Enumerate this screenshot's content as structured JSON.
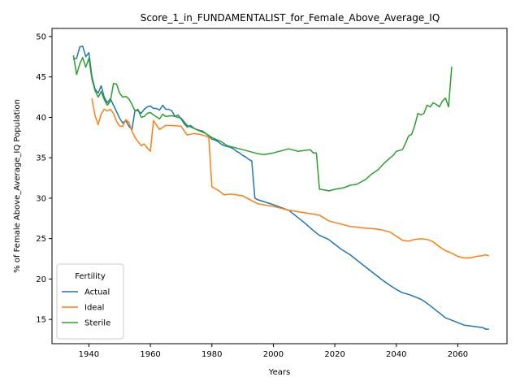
{
  "chart_data": {
    "type": "line",
    "title": "Score_1_in_FUNDAMENTALIST_for_Female_Above_Average_IQ",
    "xlabel": "Years",
    "ylabel": "% of Female Above_Average_IQ Population",
    "xlim": [
      1928,
      2076
    ],
    "ylim": [
      12,
      51
    ],
    "xticks": [
      1940,
      1960,
      1980,
      2000,
      2020,
      2040,
      2060
    ],
    "yticks": [
      15,
      20,
      25,
      30,
      35,
      40,
      45,
      50
    ],
    "grid": false,
    "legend": {
      "title": "Fertility",
      "placement": "lower-left"
    },
    "series": [
      {
        "name": "Actual",
        "color": "#1f77b4",
        "x": [
          1935,
          1936,
          1937,
          1938,
          1939,
          1940,
          1941,
          1942,
          1943,
          1944,
          1945,
          1946,
          1947,
          1948,
          1949,
          1950,
          1951,
          1952,
          1953,
          1954,
          1955,
          1956,
          1957,
          1958,
          1959,
          1960,
          1961,
          1962,
          1963,
          1964,
          1965,
          1966,
          1967,
          1968,
          1969,
          1970,
          1971,
          1972,
          1973,
          1974,
          1975,
          1976,
          1977,
          1978,
          1979,
          1980,
          1981,
          1982,
          1983,
          1984,
          1985,
          1986,
          1987,
          1988,
          1989,
          1990,
          1991,
          1992,
          1993,
          1994,
          1995,
          2000,
          2005,
          2010,
          2013,
          2015,
          2018,
          2020,
          2022,
          2025,
          2030,
          2033,
          2035,
          2038,
          2040,
          2042,
          2044,
          2046,
          2048,
          2050,
          2052,
          2054,
          2056,
          2058,
          2060,
          2062,
          2064,
          2066,
          2068,
          2069,
          2070
        ],
        "values": [
          47.2,
          47.3,
          48.7,
          48.8,
          47.5,
          48.0,
          45.0,
          43.5,
          43.0,
          43.9,
          42.5,
          41.8,
          42.3,
          41.5,
          40.7,
          39.9,
          39.3,
          39.6,
          38.9,
          38.5,
          40.9,
          40.8,
          40.5,
          41.0,
          41.3,
          41.4,
          41.1,
          41.1,
          40.9,
          41.5,
          41.0,
          41.0,
          40.8,
          40.1,
          40.3,
          39.8,
          39.2,
          38.8,
          39.0,
          38.7,
          38.5,
          38.4,
          38.3,
          38.0,
          37.7,
          37.3,
          37.2,
          37.0,
          36.7,
          36.5,
          36.4,
          36.3,
          36.1,
          35.8,
          35.6,
          35.3,
          35.1,
          34.8,
          34.6,
          30.0,
          29.8,
          29.2,
          28.5,
          27.0,
          26.0,
          25.4,
          24.9,
          24.3,
          23.7,
          23.0,
          21.5,
          20.6,
          20.0,
          19.2,
          18.7,
          18.3,
          18.1,
          17.8,
          17.5,
          17.0,
          16.4,
          15.8,
          15.2,
          14.9,
          14.6,
          14.3,
          14.2,
          14.1,
          14.0,
          13.8,
          13.8
        ]
      },
      {
        "name": "Ideal",
        "color": "#ff7f0e",
        "x": [
          1941,
          1942,
          1943,
          1944,
          1945,
          1946,
          1947,
          1948,
          1949,
          1950,
          1951,
          1952,
          1953,
          1954,
          1955,
          1956,
          1957,
          1958,
          1959,
          1960,
          1961,
          1963,
          1965,
          1967,
          1970,
          1972,
          1974,
          1976,
          1978,
          1979,
          1980,
          1982,
          1984,
          1986,
          1990,
          1995,
          2000,
          2005,
          2010,
          2015,
          2018,
          2020,
          2025,
          2030,
          2033,
          2035,
          2038,
          2040,
          2042,
          2044,
          2046,
          2048,
          2050,
          2052,
          2054,
          2056,
          2058,
          2060,
          2062,
          2064,
          2066,
          2068,
          2069,
          2070
        ],
        "values": [
          42.3,
          40.2,
          39.1,
          40.4,
          41.0,
          40.8,
          41.0,
          40.5,
          39.5,
          38.9,
          38.9,
          39.7,
          39.4,
          38.3,
          37.5,
          37.0,
          36.5,
          36.7,
          36.2,
          35.8,
          39.6,
          38.5,
          39.0,
          39.0,
          38.9,
          37.8,
          38.0,
          37.9,
          37.7,
          37.5,
          31.4,
          31.0,
          30.4,
          30.5,
          30.3,
          29.3,
          29.0,
          28.5,
          28.2,
          27.9,
          27.2,
          27.0,
          26.5,
          26.3,
          26.2,
          26.1,
          25.8,
          25.3,
          24.8,
          24.7,
          24.9,
          25.0,
          24.9,
          24.6,
          24.0,
          23.5,
          23.2,
          22.8,
          22.6,
          22.6,
          22.8,
          22.9,
          23.0,
          22.9
        ]
      },
      {
        "name": "Sterile",
        "color": "#2ca02c",
        "x": [
          1935,
          1936,
          1937,
          1938,
          1939,
          1940,
          1941,
          1942,
          1943,
          1944,
          1945,
          1946,
          1947,
          1948,
          1949,
          1950,
          1951,
          1952,
          1953,
          1954,
          1955,
          1956,
          1957,
          1958,
          1959,
          1960,
          1961,
          1963,
          1964,
          1965,
          1967,
          1969,
          1970,
          1972,
          1975,
          1978,
          1980,
          1983,
          1985,
          1990,
          1995,
          1997,
          2000,
          2005,
          2008,
          2010,
          2012,
          2013,
          2014,
          2015,
          2017,
          2018,
          2020,
          2023,
          2025,
          2027,
          2030,
          2032,
          2034,
          2036,
          2038,
          2039,
          2040,
          2042,
          2043,
          2044,
          2045,
          2046,
          2047,
          2048,
          2049,
          2050,
          2051,
          2052,
          2053,
          2054,
          2055,
          2056,
          2057,
          2058
        ],
        "values": [
          47.6,
          45.3,
          46.6,
          47.4,
          46.2,
          47.3,
          44.7,
          43.3,
          42.5,
          43.2,
          42.2,
          41.5,
          42.0,
          44.2,
          44.1,
          43.0,
          42.5,
          42.6,
          42.3,
          41.6,
          40.8,
          41.0,
          40.0,
          40.1,
          40.5,
          40.6,
          40.3,
          39.8,
          40.4,
          40.1,
          40.2,
          40.0,
          39.9,
          39.0,
          38.5,
          38.0,
          37.5,
          37.0,
          36.5,
          36.0,
          35.5,
          35.4,
          35.6,
          36.1,
          35.8,
          35.9,
          36.0,
          35.6,
          35.6,
          31.1,
          31.0,
          30.9,
          31.1,
          31.3,
          31.6,
          31.7,
          32.3,
          33.0,
          33.5,
          34.3,
          35.0,
          35.3,
          35.8,
          36.0,
          36.8,
          37.7,
          37.9,
          39.0,
          40.5,
          40.3,
          40.5,
          41.5,
          41.3,
          41.8,
          41.6,
          41.3,
          42.0,
          42.4,
          41.3,
          46.2
        ]
      }
    ]
  }
}
